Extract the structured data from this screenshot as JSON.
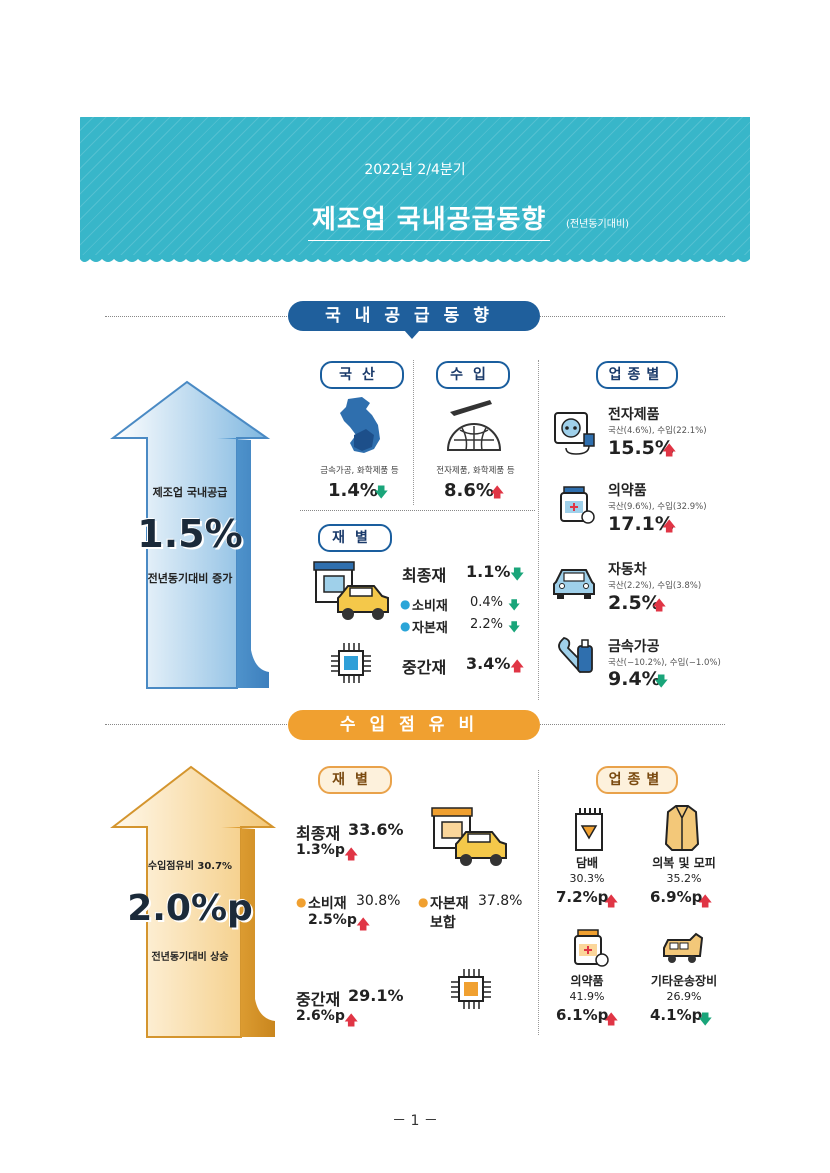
{
  "header": {
    "period": "2022년 2/4분기",
    "title": "제조업 국내공급동향",
    "note": "(전년동기대비)"
  },
  "section1": {
    "title": "국내공급동향",
    "arrow": {
      "label": "제조업 국내공급",
      "value": "1.5%",
      "caption": "전년동기대비 증가"
    },
    "production": {
      "title": "국산",
      "items": "금속가공, 화학제품 등",
      "value": "1.4%",
      "direction": "down"
    },
    "import": {
      "title": "수입",
      "items": "전자제품, 화학제품 등",
      "value": "8.6%",
      "direction": "up"
    },
    "by_goods": {
      "title": "재별",
      "final_label": "최종재",
      "final_value": "1.1%",
      "consumer_label": "소비재",
      "consumer_value": "0.4%",
      "capital_label": "자본재",
      "capital_value": "2.2%",
      "intermediate_label": "중간재",
      "intermediate_value": "3.4%"
    },
    "by_industry": {
      "title": "업종별",
      "items": [
        {
          "name": "전자제품",
          "detail": "국산(4.6%), 수입(22.1%)",
          "value": "15.5%",
          "direction": "up",
          "icon": "socket-icon"
        },
        {
          "name": "의약품",
          "detail": "국산(9.6%), 수입(32.9%)",
          "value": "17.1%",
          "direction": "up",
          "icon": "medicine-icon"
        },
        {
          "name": "자동차",
          "detail": "국산(2.2%), 수입(3.8%)",
          "value": "2.5%",
          "direction": "up",
          "icon": "car-icon"
        },
        {
          "name": "금속가공",
          "detail": "국산(−10.2%), 수입(−1.0%)",
          "value": "9.4%",
          "direction": "down",
          "icon": "tools-icon"
        }
      ]
    }
  },
  "section2": {
    "title": "수입점유비",
    "arrow": {
      "label": "수입점유비 30.7%",
      "value": "2.0%p",
      "caption": "전년동기대비 상승"
    },
    "by_goods": {
      "title": "재별",
      "final_label": "최종재",
      "final_share": "33.6%",
      "final_change": "1.3%p",
      "consumer_label": "소비재",
      "consumer_share": "30.8%",
      "consumer_change": "2.5%p",
      "capital_label": "자본재",
      "capital_share": "37.8%",
      "capital_change": "보합",
      "intermediate_label": "중간재",
      "intermediate_share": "29.1%",
      "intermediate_change": "2.6%p"
    },
    "by_industry": {
      "title": "업종별",
      "items": [
        {
          "name": "담배",
          "share": "30.3%",
          "change": "7.2%p",
          "direction": "up",
          "icon": "tobacco-icon"
        },
        {
          "name": "의복 및 모피",
          "share": "35.2%",
          "change": "6.9%p",
          "direction": "up",
          "icon": "coat-icon"
        },
        {
          "name": "의약품",
          "share": "41.9%",
          "change": "6.1%p",
          "direction": "up",
          "icon": "medicine-icon"
        },
        {
          "name": "기타운송장비",
          "share": "26.9%",
          "change": "4.1%p",
          "direction": "down",
          "icon": "train-icon"
        }
      ]
    }
  },
  "footer": {
    "page": "－ 1 －"
  },
  "colors": {
    "header_bg": "#38b6c9",
    "section1_pill": "#1f5f9c",
    "section2_pill": "#f0a030",
    "up": "#e03545",
    "down": "#1aa57a"
  }
}
